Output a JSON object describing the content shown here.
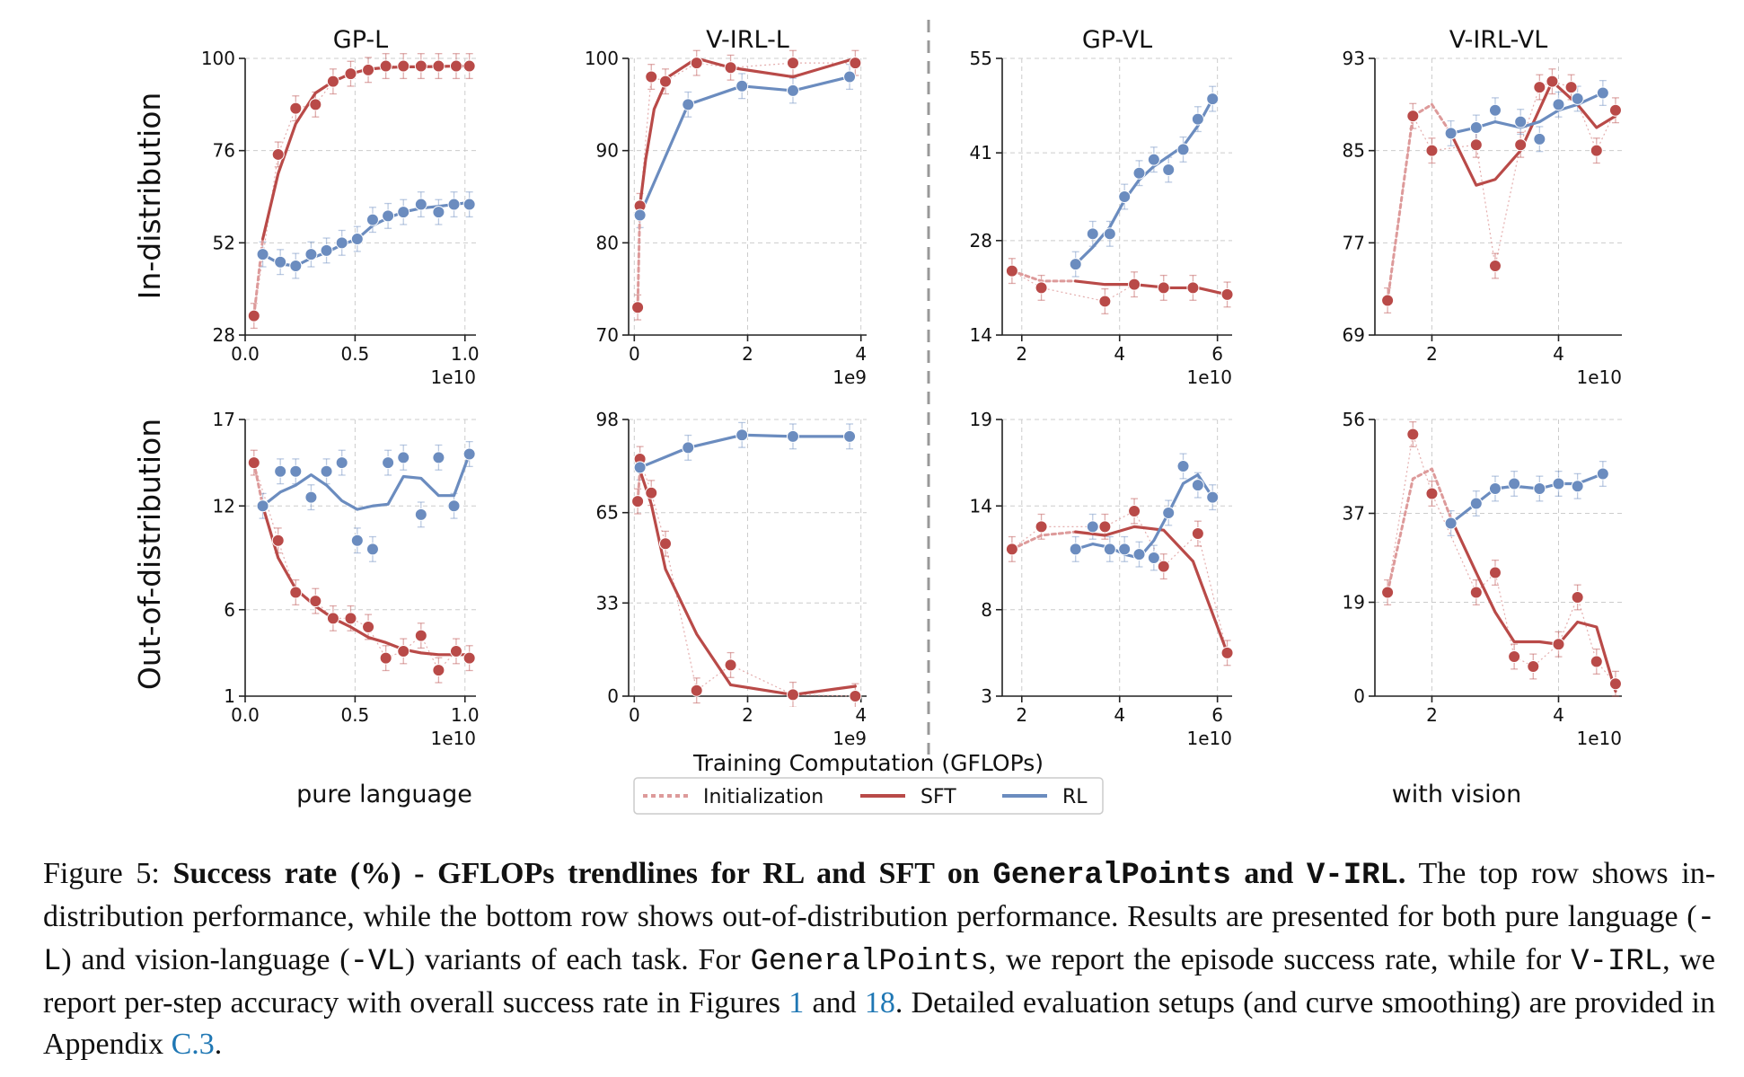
{
  "colors": {
    "sft": "#b94a48",
    "rl": "#6b8cbf",
    "init": "#dd9a9a",
    "grid": "#cccccc",
    "divider": "#999999"
  },
  "row_labels": [
    "In-distribution",
    "Out-of-distribution"
  ],
  "group_labels": [
    "pure language",
    "with vision"
  ],
  "xlabel": "Training Computation (GFLOPs)",
  "legend": [
    "Initialization",
    "SFT",
    "RL"
  ],
  "chart_data": [
    {
      "type": "line",
      "title": "GP-L",
      "row": "In-distribution",
      "xlim": [
        0,
        1.05
      ],
      "ylim": [
        28,
        100
      ],
      "yticks": [
        28,
        52,
        76,
        100
      ],
      "xticks": [
        0,
        0.5,
        1.0
      ],
      "xticklabels": [
        "0.0",
        "0.5",
        "1.0"
      ],
      "xscale": "1e10",
      "series": [
        {
          "name": "Initialization",
          "x": [
            0.04,
            0.08
          ],
          "y": [
            33,
            53
          ]
        },
        {
          "name": "SFT",
          "x": [
            0.08,
            0.15,
            0.23,
            0.32,
            0.4,
            0.48,
            0.56,
            0.64,
            0.72,
            0.8,
            0.88,
            0.96,
            1.02
          ],
          "y": [
            53,
            70,
            83,
            91,
            94,
            96,
            97.2,
            97.6,
            97.8,
            97.8,
            97.9,
            98,
            98
          ],
          "points_x": [
            0.04,
            0.15,
            0.23,
            0.32,
            0.4,
            0.48,
            0.56,
            0.64,
            0.72,
            0.8,
            0.88,
            0.96,
            1.02
          ],
          "points_y": [
            33,
            75,
            87,
            88,
            94,
            96,
            97,
            98,
            98,
            98,
            98,
            98,
            98
          ]
        },
        {
          "name": "RL",
          "x": [
            0.08,
            0.16,
            0.23,
            0.3,
            0.37,
            0.44,
            0.51,
            0.58,
            0.65,
            0.72,
            0.8,
            0.88,
            0.95,
            1.02
          ],
          "y": [
            49,
            46.5,
            46,
            48,
            49.5,
            51.5,
            53,
            56.5,
            58.5,
            60,
            61,
            61.5,
            62,
            62.5
          ],
          "points_x": [
            0.08,
            0.16,
            0.23,
            0.3,
            0.37,
            0.44,
            0.51,
            0.58,
            0.65,
            0.72,
            0.8,
            0.88,
            0.95,
            1.02
          ],
          "points_y": [
            49,
            47,
            46,
            49,
            50,
            52,
            53,
            58,
            59,
            60,
            62,
            60,
            62,
            62
          ]
        }
      ]
    },
    {
      "type": "line",
      "title": "V-IRL-L",
      "row": "In-distribution",
      "xlim": [
        -0.1,
        4.1
      ],
      "ylim": [
        70,
        100
      ],
      "yticks": [
        70,
        80,
        90,
        100
      ],
      "xticks": [
        0,
        2,
        4
      ],
      "xticklabels": [
        "0",
        "2",
        "4"
      ],
      "xscale": "1e9",
      "series": [
        {
          "name": "Initialization",
          "x": [
            0.06,
            0.1
          ],
          "y": [
            73,
            84
          ]
        },
        {
          "name": "SFT",
          "x": [
            0.1,
            0.2,
            0.35,
            0.6,
            1.1,
            1.7,
            2.8,
            3.9
          ],
          "y": [
            84,
            89,
            94.5,
            98,
            100,
            99,
            98,
            100
          ],
          "points_x": [
            0.06,
            0.1,
            0.3,
            0.55,
            1.1,
            1.7,
            2.8,
            3.9
          ],
          "points_y": [
            73,
            84,
            98,
            97.5,
            99.5,
            99,
            99.5,
            99.5
          ]
        },
        {
          "name": "RL",
          "x": [
            0.1,
            0.95,
            1.9,
            2.8,
            3.8
          ],
          "y": [
            83,
            95,
            97,
            96.5,
            98
          ],
          "points_x": [
            0.1,
            0.95,
            1.9,
            2.8,
            3.8
          ],
          "points_y": [
            83,
            95,
            97,
            96.5,
            98
          ]
        }
      ]
    },
    {
      "type": "line",
      "title": "GP-VL",
      "row": "In-distribution",
      "xlim": [
        1.6,
        6.3
      ],
      "ylim": [
        14,
        55
      ],
      "yticks": [
        14,
        28,
        41,
        55
      ],
      "xticks": [
        2,
        4,
        6
      ],
      "xticklabels": [
        "2",
        "4",
        "6"
      ],
      "xscale": "1e10",
      "series": [
        {
          "name": "Initialization",
          "x": [
            1.8,
            2.4,
            3.1
          ],
          "y": [
            23.5,
            22,
            22
          ]
        },
        {
          "name": "SFT",
          "x": [
            3.1,
            3.7,
            4.3,
            5.0,
            5.6,
            6.2
          ],
          "y": [
            22,
            21.5,
            21.5,
            21,
            21,
            20
          ],
          "points_x": [
            1.8,
            2.4,
            3.7,
            4.3,
            4.9,
            5.5,
            6.2
          ],
          "points_y": [
            23.5,
            21,
            19,
            21.5,
            21,
            21,
            20
          ]
        },
        {
          "name": "RL",
          "x": [
            3.1,
            3.45,
            3.8,
            4.1,
            4.4,
            4.7,
            5.0,
            5.3,
            5.6,
            5.9
          ],
          "y": [
            24.5,
            27,
            30,
            34,
            37,
            39,
            40.5,
            42,
            45,
            49
          ],
          "points_x": [
            3.1,
            3.45,
            3.8,
            4.1,
            4.4,
            4.7,
            5.0,
            5.3,
            5.6,
            5.9
          ],
          "points_y": [
            24.5,
            29,
            29,
            34.5,
            38,
            40,
            38.5,
            41.5,
            46,
            49
          ]
        }
      ]
    },
    {
      "type": "line",
      "title": "V-IRL-VL",
      "row": "In-distribution",
      "xlim": [
        1.1,
        5.0
      ],
      "ylim": [
        69,
        93
      ],
      "yticks": [
        69,
        77,
        85,
        93
      ],
      "xticks": [
        2,
        4
      ],
      "xticklabels": [
        "2",
        "4"
      ],
      "xscale": "1e10",
      "series": [
        {
          "name": "Initialization",
          "x": [
            1.3,
            1.7,
            2.0,
            2.3
          ],
          "y": [
            72,
            88,
            89,
            86.5
          ]
        },
        {
          "name": "SFT",
          "x": [
            2.3,
            2.7,
            3.0,
            3.4,
            3.9,
            4.3,
            4.6,
            4.9
          ],
          "y": [
            86.5,
            82,
            82.5,
            85,
            91,
            89,
            87,
            88
          ],
          "points_x": [
            1.3,
            1.7,
            2.0,
            2.7,
            3.0,
            3.4,
            3.7,
            3.9,
            4.2,
            4.6,
            4.9
          ],
          "points_y": [
            72,
            88,
            85,
            85.5,
            75,
            85.5,
            90.5,
            91,
            90.5,
            85,
            88.5
          ]
        },
        {
          "name": "RL",
          "x": [
            2.3,
            2.7,
            3.0,
            3.4,
            3.7,
            4.0,
            4.3,
            4.7
          ],
          "y": [
            86.5,
            87,
            87.5,
            87,
            87.5,
            88.5,
            89,
            90
          ],
          "points_x": [
            2.3,
            2.7,
            3.0,
            3.4,
            3.7,
            4.0,
            4.3,
            4.7
          ],
          "points_y": [
            86.5,
            87,
            88.5,
            87.5,
            86,
            89,
            89.5,
            90
          ]
        }
      ]
    },
    {
      "type": "line",
      "title": "",
      "row": "Out-of-distribution",
      "xlim": [
        0,
        1.05
      ],
      "ylim": [
        1,
        17
      ],
      "yticks": [
        1,
        6,
        12,
        17
      ],
      "xticks": [
        0,
        0.5,
        1.0
      ],
      "xticklabels": [
        "0.0",
        "0.5",
        "1.0"
      ],
      "xscale": "1e10",
      "series": [
        {
          "name": "Initialization",
          "x": [
            0.04,
            0.08
          ],
          "y": [
            14.5,
            12
          ]
        },
        {
          "name": "SFT",
          "x": [
            0.08,
            0.15,
            0.23,
            0.32,
            0.4,
            0.48,
            0.56,
            0.64,
            0.72,
            0.8,
            0.88,
            0.96,
            1.02
          ],
          "y": [
            12,
            9,
            7.2,
            6.2,
            5.5,
            5,
            4.4,
            4.1,
            3.7,
            3.5,
            3.4,
            3.4,
            3.4
          ],
          "points_x": [
            0.04,
            0.15,
            0.23,
            0.32,
            0.4,
            0.48,
            0.56,
            0.64,
            0.72,
            0.8,
            0.88,
            0.96,
            1.02
          ],
          "points_y": [
            14.5,
            10,
            7,
            6.5,
            5.5,
            5.5,
            5,
            3.2,
            3.6,
            4.5,
            2.5,
            3.6,
            3.2
          ]
        },
        {
          "name": "RL",
          "x": [
            0.08,
            0.16,
            0.23,
            0.3,
            0.37,
            0.44,
            0.51,
            0.58,
            0.65,
            0.72,
            0.8,
            0.88,
            0.95,
            1.02
          ],
          "y": [
            12,
            12.8,
            13.2,
            13.8,
            13.2,
            12.3,
            11.8,
            12,
            12.1,
            13.7,
            13.6,
            12.6,
            12.6,
            15
          ],
          "points_x": [
            0.08,
            0.16,
            0.23,
            0.3,
            0.37,
            0.44,
            0.51,
            0.58,
            0.65,
            0.72,
            0.8,
            0.88,
            0.95,
            1.02
          ],
          "points_y": [
            12,
            14,
            14,
            12.5,
            14,
            14.5,
            10,
            9.5,
            14.5,
            14.8,
            11.5,
            14.8,
            12,
            15
          ]
        }
      ]
    },
    {
      "type": "line",
      "title": "",
      "row": "Out-of-distribution",
      "xlim": [
        -0.1,
        4.1
      ],
      "ylim": [
        0,
        98
      ],
      "yticks": [
        0,
        33,
        65,
        98
      ],
      "xticks": [
        0,
        2,
        4
      ],
      "xticklabels": [
        "0",
        "2",
        "4"
      ],
      "xscale": "1e9",
      "series": [
        {
          "name": "Initialization",
          "x": [
            0.06,
            0.1
          ],
          "y": [
            69,
            80
          ]
        },
        {
          "name": "SFT",
          "x": [
            0.1,
            0.3,
            0.55,
            1.1,
            1.7,
            2.8,
            3.9
          ],
          "y": [
            80,
            68,
            45,
            22,
            4,
            0.5,
            3.5
          ],
          "points_x": [
            0.06,
            0.1,
            0.3,
            0.55,
            1.1,
            1.7,
            2.8,
            3.9
          ],
          "points_y": [
            69,
            84,
            72,
            54,
            2,
            11,
            0.5,
            0
          ]
        },
        {
          "name": "RL",
          "x": [
            0.1,
            0.95,
            1.9,
            2.8,
            3.8
          ],
          "y": [
            81,
            88,
            92.5,
            92,
            92
          ],
          "points_x": [
            0.1,
            0.95,
            1.9,
            2.8,
            3.8
          ],
          "points_y": [
            81,
            88,
            92.5,
            92,
            92
          ]
        }
      ]
    },
    {
      "type": "line",
      "title": "",
      "row": "Out-of-distribution",
      "xlim": [
        1.6,
        6.3
      ],
      "ylim": [
        3,
        19
      ],
      "yticks": [
        3,
        8,
        14,
        19
      ],
      "xticks": [
        2,
        4,
        6
      ],
      "xticklabels": [
        "2",
        "4",
        "6"
      ],
      "xscale": "1e10",
      "series": [
        {
          "name": "Initialization",
          "x": [
            1.8,
            2.4,
            3.1
          ],
          "y": [
            11.5,
            12.3,
            12.5
          ]
        },
        {
          "name": "SFT",
          "x": [
            3.1,
            3.7,
            4.3,
            4.9,
            5.5,
            6.2
          ],
          "y": [
            12.5,
            12.3,
            12.8,
            12.6,
            10.8,
            5.5
          ],
          "points_x": [
            1.8,
            2.4,
            3.7,
            4.3,
            4.9,
            5.6,
            6.2
          ],
          "points_y": [
            11.5,
            12.8,
            12.8,
            13.7,
            10.5,
            12.4,
            5.5
          ]
        },
        {
          "name": "RL",
          "x": [
            3.1,
            3.45,
            3.8,
            4.1,
            4.4,
            4.7,
            5.0,
            5.3,
            5.6,
            5.9
          ],
          "y": [
            11.5,
            11.8,
            11.6,
            11.2,
            11.0,
            12.0,
            13.6,
            15.3,
            15.8,
            14.5
          ],
          "points_x": [
            3.1,
            3.45,
            3.8,
            4.1,
            4.4,
            4.7,
            5.0,
            5.3,
            5.6,
            5.9
          ],
          "points_y": [
            11.5,
            12.8,
            11.5,
            11.5,
            11.2,
            11.0,
            13.6,
            16.3,
            15.2,
            14.5
          ]
        }
      ]
    },
    {
      "type": "line",
      "title": "",
      "row": "Out-of-distribution",
      "xlim": [
        1.1,
        5.0
      ],
      "ylim": [
        0,
        56
      ],
      "yticks": [
        0,
        19,
        37,
        56
      ],
      "xticks": [
        2,
        4
      ],
      "xticklabels": [
        "2",
        "4"
      ],
      "xscale": "1e10",
      "series": [
        {
          "name": "Initialization",
          "x": [
            1.3,
            1.7,
            2.0,
            2.3
          ],
          "y": [
            21,
            44,
            46,
            36
          ]
        },
        {
          "name": "SFT",
          "x": [
            2.3,
            2.7,
            3.0,
            3.3,
            3.7,
            4.0,
            4.3,
            4.6,
            4.9
          ],
          "y": [
            36,
            25,
            17,
            11,
            11,
            10.5,
            15,
            14,
            1
          ],
          "points_x": [
            1.3,
            1.7,
            2.0,
            2.7,
            3.0,
            3.3,
            3.6,
            4.0,
            4.3,
            4.6,
            4.9
          ],
          "points_y": [
            21,
            53,
            41,
            21,
            25,
            8,
            6,
            10.5,
            20,
            7,
            2.5
          ]
        },
        {
          "name": "RL",
          "x": [
            2.3,
            2.7,
            3.0,
            3.3,
            3.7,
            4.0,
            4.3,
            4.7
          ],
          "y": [
            35,
            39,
            42,
            42.5,
            42,
            43,
            43,
            45
          ],
          "points_x": [
            2.3,
            2.7,
            3.0,
            3.3,
            3.7,
            4.0,
            4.3,
            4.7
          ],
          "points_y": [
            35,
            39,
            42,
            43,
            42,
            43,
            42.5,
            45
          ]
        }
      ]
    }
  ],
  "caption": {
    "figure_label": "Figure 5:",
    "bold_a": "Success rate (%) - GFLOPs trendlines for RL and SFT on",
    "bold_gp": "GeneralPoints",
    "bold_and": "and",
    "bold_virl": "V-IRL",
    "bold_end": ".",
    "t1": "The top row shows in-distribution performance, while the bottom row shows out-of-distribution performance. Results are presented for both pure language (",
    "m_l": "-L",
    "t2": ") and vision-language (",
    "m_vl": "-VL",
    "t3": ") variants of each task. For",
    "m_gp": "GeneralPoints",
    "t4": ", we report the episode success rate, while for",
    "m_virl": "V-IRL",
    "t5": ", we report per-step accuracy with overall success rate in Figures",
    "ref1": "1",
    "t6": "and",
    "ref2": "18",
    "t7": ". Detailed evaluation setups (and curve smoothing) are provided in Appendix",
    "ref3": "C.3",
    "t8": "."
  }
}
